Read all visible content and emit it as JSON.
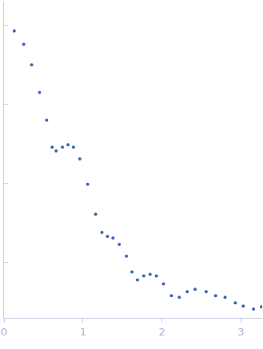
{
  "chart_data": {
    "type": "scatter",
    "marker": "circle",
    "color": "#3a66b5",
    "x": [
      0.13,
      0.25,
      0.35,
      0.45,
      0.54,
      0.61,
      0.66,
      0.74,
      0.81,
      0.88,
      0.96,
      1.06,
      1.16,
      1.24,
      1.31,
      1.38,
      1.46,
      1.55,
      1.62,
      1.69,
      1.77,
      1.85,
      1.93,
      2.02,
      2.12,
      2.22,
      2.32,
      2.42,
      2.56,
      2.68,
      2.8,
      2.93,
      3.03,
      3.16,
      3.26
    ],
    "values": [
      3.93,
      3.76,
      3.5,
      3.15,
      2.8,
      2.46,
      2.41,
      2.46,
      2.49,
      2.46,
      2.31,
      1.99,
      1.61,
      1.38,
      1.33,
      1.31,
      1.23,
      1.08,
      0.88,
      0.78,
      0.83,
      0.85,
      0.83,
      0.73,
      0.58,
      0.56,
      0.63,
      0.66,
      0.63,
      0.58,
      0.56,
      0.49,
      0.45,
      0.41,
      0.44
    ],
    "xlim": [
      0,
      3.27
    ],
    "xticks": [
      0,
      1,
      2,
      3
    ],
    "ylim": [
      0.3,
      4.3
    ],
    "yticks": [
      1,
      2,
      3,
      4
    ],
    "grid": false,
    "tick_labels": "x"
  }
}
